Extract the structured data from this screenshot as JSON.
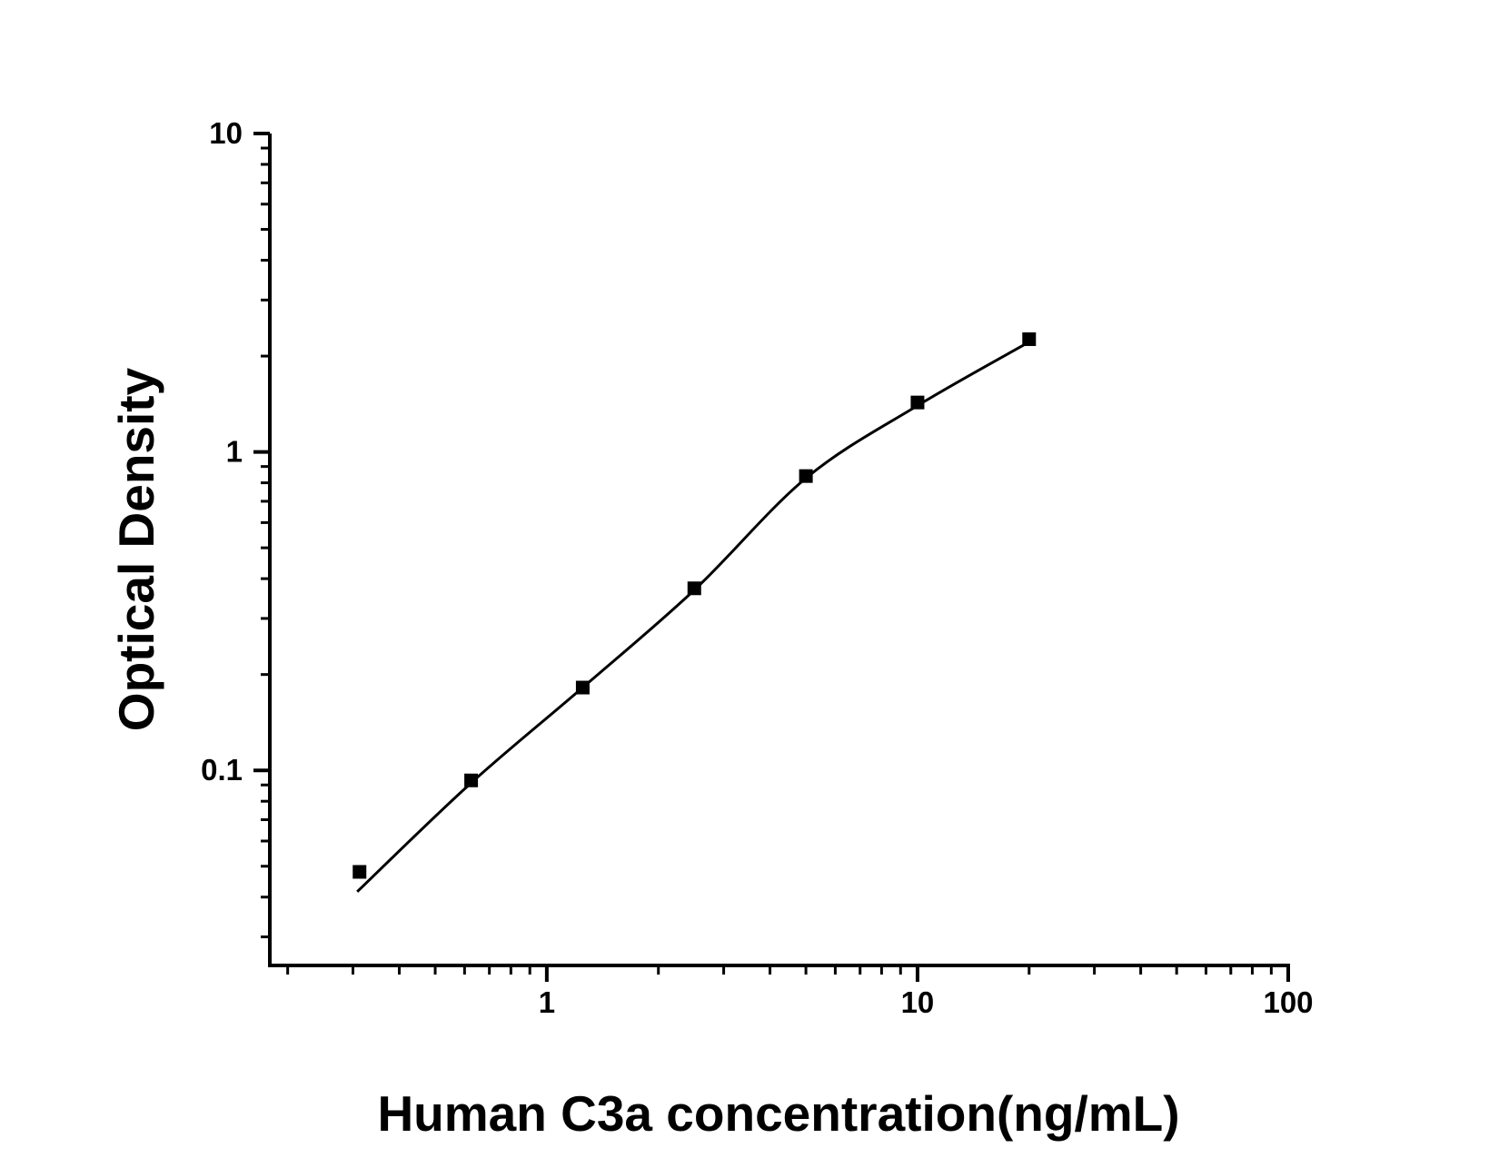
{
  "figure": {
    "background_color": "#ffffff",
    "ink_color": "#000000"
  },
  "chart_data": {
    "type": "scatter",
    "title": "",
    "xlabel": "Human C3a concentration(ng/mL)",
    "ylabel": "Optical Density",
    "x_scale": "log",
    "y_scale": "log",
    "xlim": [
      0.179,
      100
    ],
    "ylim": [
      0.0244,
      10
    ],
    "x_major_ticks": [
      1,
      10,
      100
    ],
    "x_major_tick_labels": [
      "1",
      "10",
      "100"
    ],
    "y_major_ticks": [
      0.1,
      1,
      10
    ],
    "y_major_tick_labels": [
      "0.1",
      "1",
      "10"
    ],
    "grid": false,
    "legend": false,
    "marker": "filled-square",
    "marker_color": "#000000",
    "line_color": "#000000",
    "points": {
      "concentration_ng_ml": [
        0.3125,
        0.625,
        1.25,
        2.5,
        5,
        10,
        20
      ],
      "optical_density": [
        0.048,
        0.093,
        0.182,
        0.373,
        0.84,
        1.43,
        2.26
      ]
    },
    "fit_curve": {
      "concentration_ng_ml": [
        0.308,
        0.623,
        1.25,
        2.5,
        5,
        10,
        20
      ],
      "optical_density": [
        0.0416,
        0.091,
        0.182,
        0.3685,
        0.827,
        1.398,
        2.215
      ]
    }
  }
}
